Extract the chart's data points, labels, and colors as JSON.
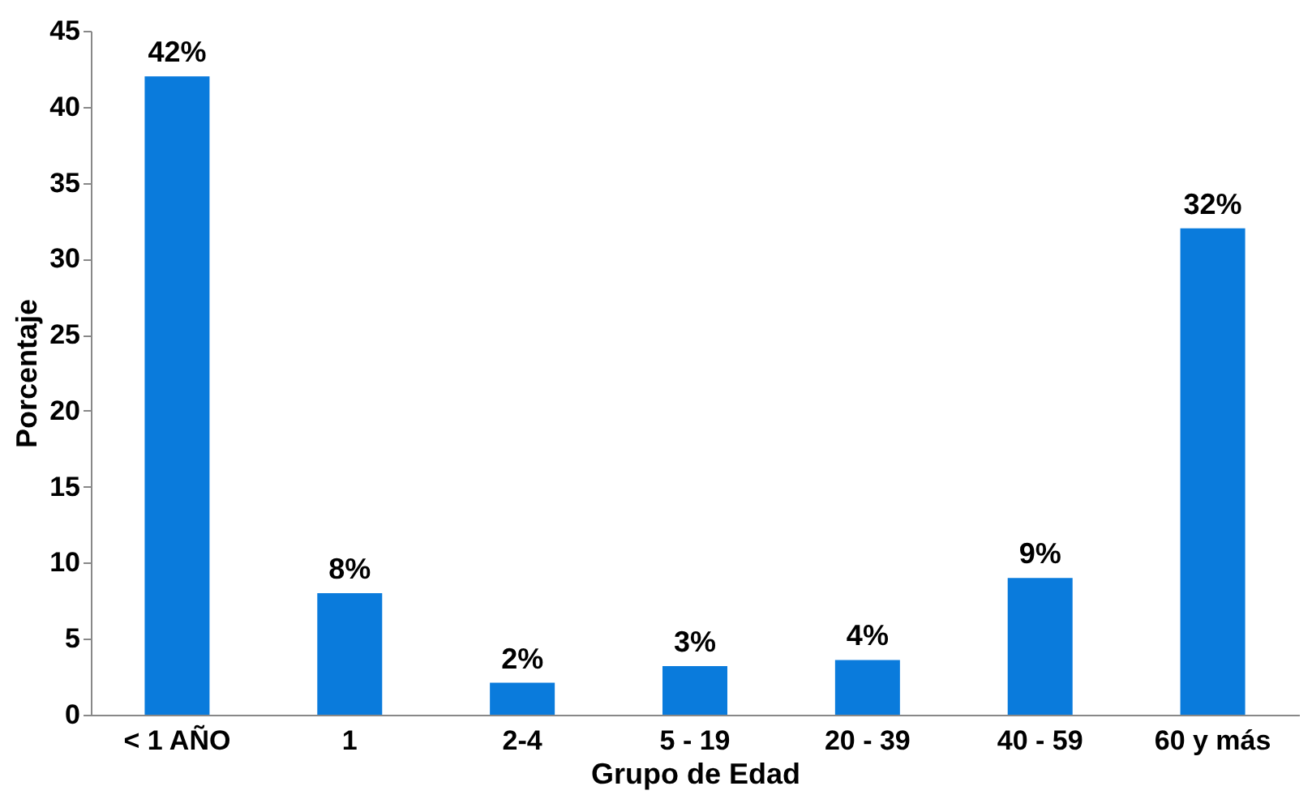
{
  "chart_data": {
    "type": "bar",
    "xlabel": "Grupo de Edad",
    "ylabel": "Porcentaje",
    "categories": [
      "< 1 AÑO",
      "1",
      "2-4",
      "5 - 19",
      "20 - 39",
      "40 - 59",
      "60 y más"
    ],
    "values": [
      42,
      8,
      2.1,
      3.2,
      3.6,
      9,
      32
    ],
    "value_labels": [
      "42%",
      "8%",
      "2%",
      "3%",
      "4%",
      "9%",
      "32%"
    ],
    "color": "#0a7bdc",
    "ylim": [
      0,
      45
    ],
    "yticks": [
      0,
      5,
      10,
      15,
      20,
      25,
      30,
      35,
      40,
      45
    ],
    "grid": false
  }
}
